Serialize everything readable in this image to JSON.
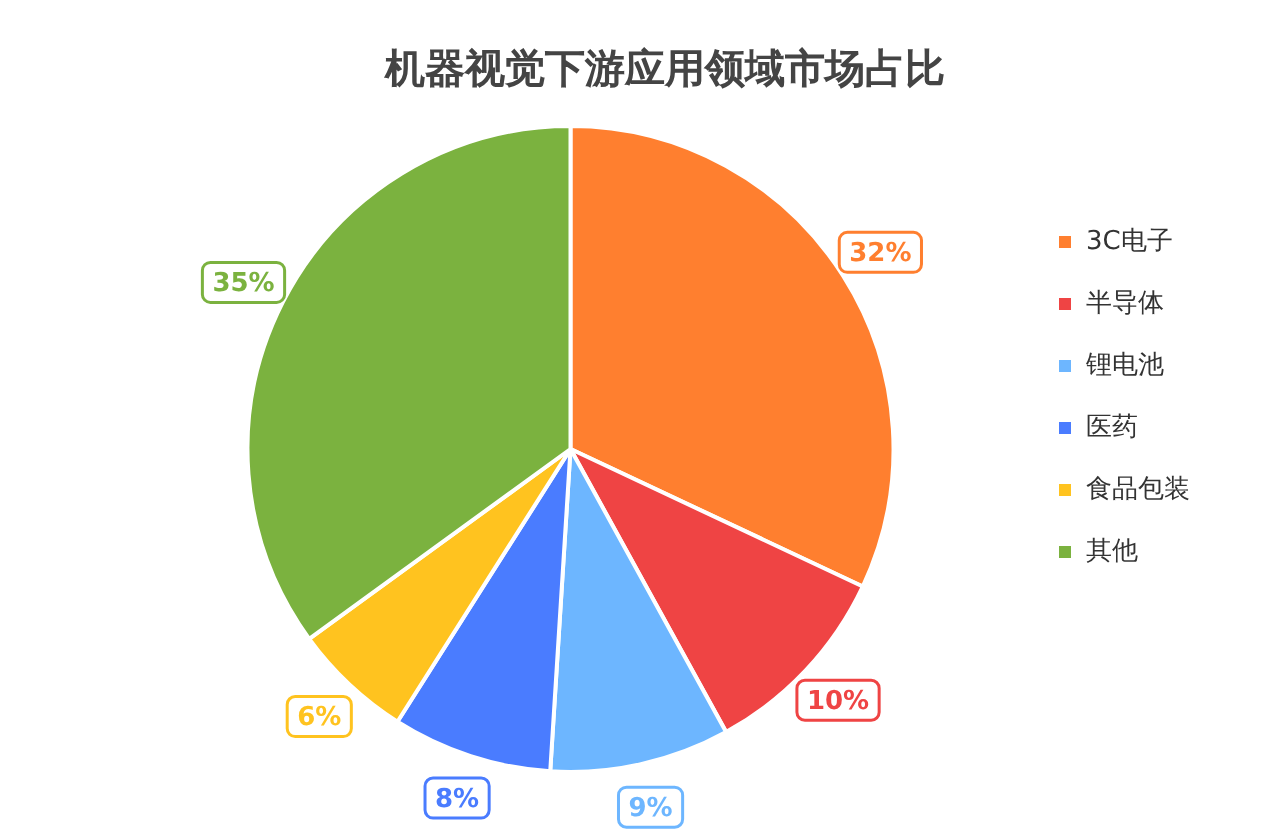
{
  "chart_data": {
    "type": "pie",
    "title": "机器视觉下游应用领域市场占比",
    "categories": [
      "3C电子",
      "半导体",
      "锂电池",
      "医药",
      "食品包装",
      "其他"
    ],
    "values": [
      32,
      10,
      9,
      8,
      6,
      35
    ],
    "value_labels": [
      "32%",
      "10%",
      "9%",
      "8%",
      "6%",
      "35%"
    ],
    "colors": [
      "#ff7f2f",
      "#ef4444",
      "#6db6ff",
      "#4a7cff",
      "#ffc31f",
      "#7bb23f"
    ],
    "legend": "right"
  }
}
